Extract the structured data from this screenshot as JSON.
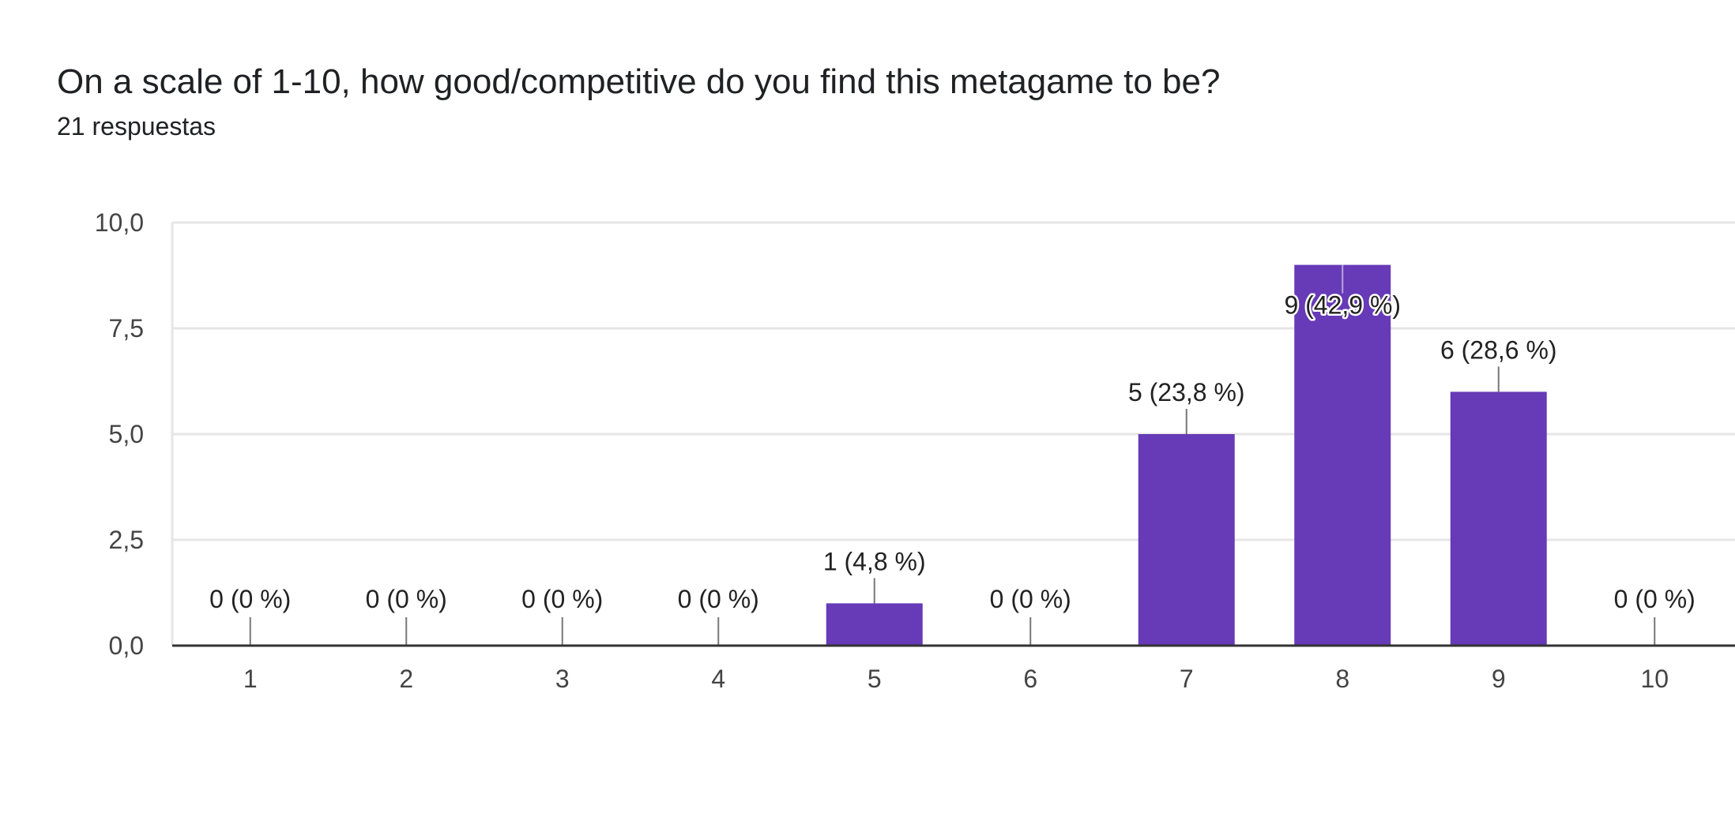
{
  "header": {
    "title": "On a scale of 1-10, how good/competitive do you find this metagame to be?",
    "responses": "21 respuestas"
  },
  "colors": {
    "bar": "#673ab7",
    "grid": "#e6e6e6",
    "axis": "#333333",
    "leader": "#777777"
  },
  "chart_data": {
    "type": "bar",
    "categories": [
      "1",
      "2",
      "3",
      "4",
      "5",
      "6",
      "7",
      "8",
      "9",
      "10"
    ],
    "values": [
      0,
      0,
      0,
      0,
      1,
      0,
      5,
      9,
      6,
      0
    ],
    "data_labels": [
      "0 (0 %)",
      "0 (0 %)",
      "0 (0 %)",
      "0 (0 %)",
      "1 (4,8 %)",
      "0 (0 %)",
      "5 (23,8 %)",
      "9 (42,9 %)",
      "6 (28,6 %)",
      "0 (0 %)"
    ],
    "y_ticks": [
      "0,0",
      "2,5",
      "5,0",
      "7,5",
      "10,0"
    ],
    "y_tick_values": [
      0,
      2.5,
      5,
      7.5,
      10
    ],
    "ylim": [
      0,
      10
    ],
    "grid": true,
    "legend": "none"
  }
}
